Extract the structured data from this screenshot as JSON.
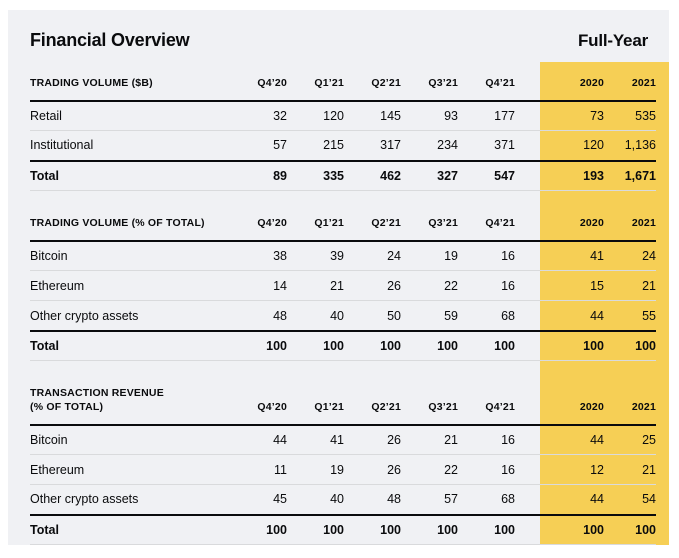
{
  "header": {
    "title": "Financial Overview",
    "period_label": "Full-Year"
  },
  "colors": {
    "page_bg": "#ffffff",
    "panel_bg": "#f0f1f4",
    "highlight_band": "#f6cf55",
    "text": "#0a0b0d",
    "divider_light": "#d9dadc",
    "divider_dark": "#0a0b0d"
  },
  "columns": [
    "Q4’20",
    "Q1’21",
    "Q2’21",
    "Q3’21",
    "Q4’21",
    "2020",
    "2021"
  ],
  "chart_data": [
    {
      "type": "table",
      "title": "TRADING VOLUME ($B)",
      "title_line2": "",
      "columns": [
        "Q4’20",
        "Q1’21",
        "Q2’21",
        "Q3’21",
        "Q4’21",
        "2020",
        "2021"
      ],
      "rows": [
        {
          "label": "Retail",
          "values": [
            "32",
            "120",
            "145",
            "93",
            "177",
            "73",
            "535"
          ],
          "total": false
        },
        {
          "label": "Institutional",
          "values": [
            "57",
            "215",
            "317",
            "234",
            "371",
            "120",
            "1,136"
          ],
          "total": false
        },
        {
          "label": "Total",
          "values": [
            "89",
            "335",
            "462",
            "327",
            "547",
            "193",
            "1,671"
          ],
          "total": true
        }
      ]
    },
    {
      "type": "table",
      "title": "TRADING VOLUME (% OF TOTAL)",
      "title_line2": "",
      "columns": [
        "Q4’20",
        "Q1’21",
        "Q2’21",
        "Q3’21",
        "Q4’21",
        "2020",
        "2021"
      ],
      "rows": [
        {
          "label": "Bitcoin",
          "values": [
            "38",
            "39",
            "24",
            "19",
            "16",
            "41",
            "24"
          ],
          "total": false
        },
        {
          "label": "Ethereum",
          "values": [
            "14",
            "21",
            "26",
            "22",
            "16",
            "15",
            "21"
          ],
          "total": false
        },
        {
          "label": "Other crypto assets",
          "values": [
            "48",
            "40",
            "50",
            "59",
            "68",
            "44",
            "55"
          ],
          "total": false
        },
        {
          "label": "Total",
          "values": [
            "100",
            "100",
            "100",
            "100",
            "100",
            "100",
            "100"
          ],
          "total": true
        }
      ]
    },
    {
      "type": "table",
      "title": "TRANSACTION REVENUE",
      "title_line2": "(% OF TOTAL)",
      "columns": [
        "Q4’20",
        "Q1’21",
        "Q2’21",
        "Q3’21",
        "Q4’21",
        "2020",
        "2021"
      ],
      "rows": [
        {
          "label": "Bitcoin",
          "values": [
            "44",
            "41",
            "26",
            "21",
            "16",
            "44",
            "25"
          ],
          "total": false
        },
        {
          "label": "Ethereum",
          "values": [
            "11",
            "19",
            "26",
            "22",
            "16",
            "12",
            "21"
          ],
          "total": false
        },
        {
          "label": "Other crypto assets",
          "values": [
            "45",
            "40",
            "48",
            "57",
            "68",
            "44",
            "54"
          ],
          "total": false
        },
        {
          "label": "Total",
          "values": [
            "100",
            "100",
            "100",
            "100",
            "100",
            "100",
            "100"
          ],
          "total": true
        }
      ]
    }
  ]
}
